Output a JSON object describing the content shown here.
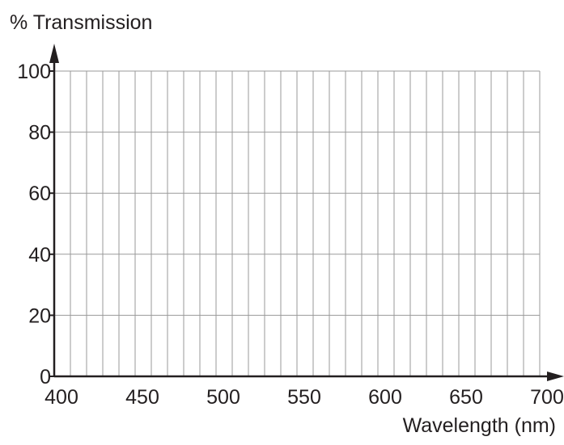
{
  "chart_data": {
    "type": "line",
    "title": "",
    "xlabel": "Wavelength (nm)",
    "ylabel": "% Transmission",
    "xlim": [
      400,
      700
    ],
    "ylim": [
      0,
      100
    ],
    "x_ticks": [
      400,
      450,
      500,
      550,
      600,
      650,
      700
    ],
    "y_ticks": [
      0,
      20,
      40,
      60,
      80,
      100
    ],
    "x_tick_labels": [
      "400",
      "450",
      "500",
      "550",
      "600",
      "650",
      "700"
    ],
    "y_tick_labels": [
      "0",
      "20",
      "40",
      "60",
      "80",
      "100"
    ],
    "x_minor_step": 10,
    "y_major_step": 20,
    "grid": true,
    "series": []
  }
}
